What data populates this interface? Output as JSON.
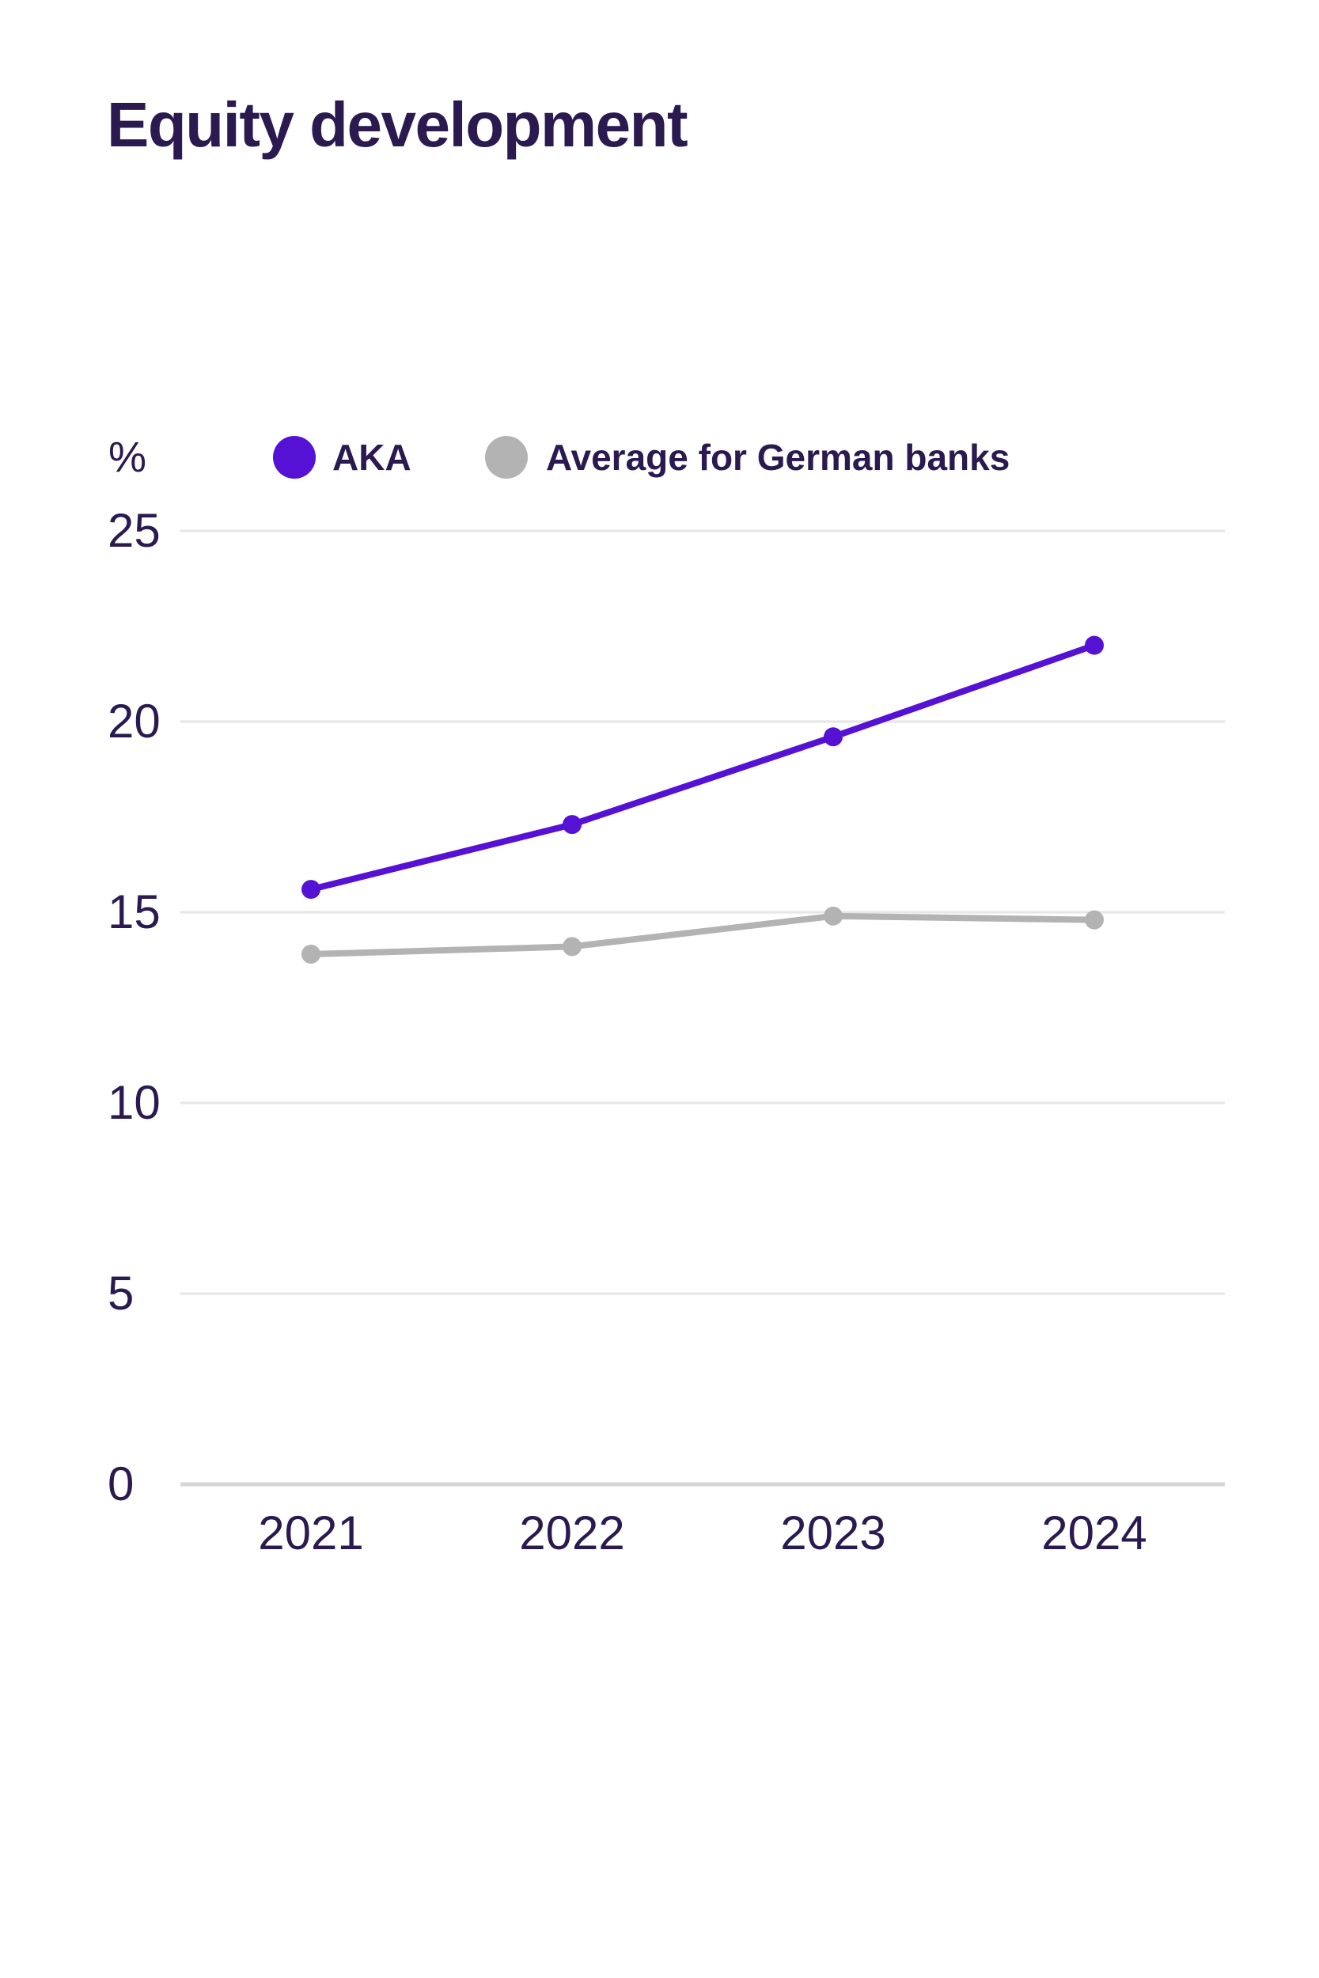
{
  "title": "Equity development",
  "legend": {
    "position": "top",
    "items": [
      {
        "id": "aka",
        "label": "AKA",
        "color": "#5512d4"
      },
      {
        "id": "average",
        "label": "Average for German banks",
        "color": "#b3b3b3"
      }
    ]
  },
  "chart_data": {
    "type": "line",
    "title": "Equity development",
    "unit_label": "%",
    "categories": [
      "2021",
      "2022",
      "2023",
      "2024"
    ],
    "series": [
      {
        "id": "aka",
        "name": "AKA",
        "color": "#5512d4",
        "values": [
          15.6,
          17.3,
          19.6,
          22.0
        ]
      },
      {
        "id": "average",
        "name": "Average for German banks",
        "color": "#b3b3b3",
        "values": [
          13.9,
          14.1,
          14.9,
          14.8
        ]
      }
    ],
    "xlabel": "",
    "ylabel": "%",
    "ylim": [
      0,
      25
    ],
    "y_ticks": [
      0,
      5,
      10,
      15,
      20,
      25
    ],
    "grid": true,
    "gridline_color": "#e6e6e6",
    "baseline_color": "#d6d6d6",
    "background_color": "#ffffff"
  }
}
